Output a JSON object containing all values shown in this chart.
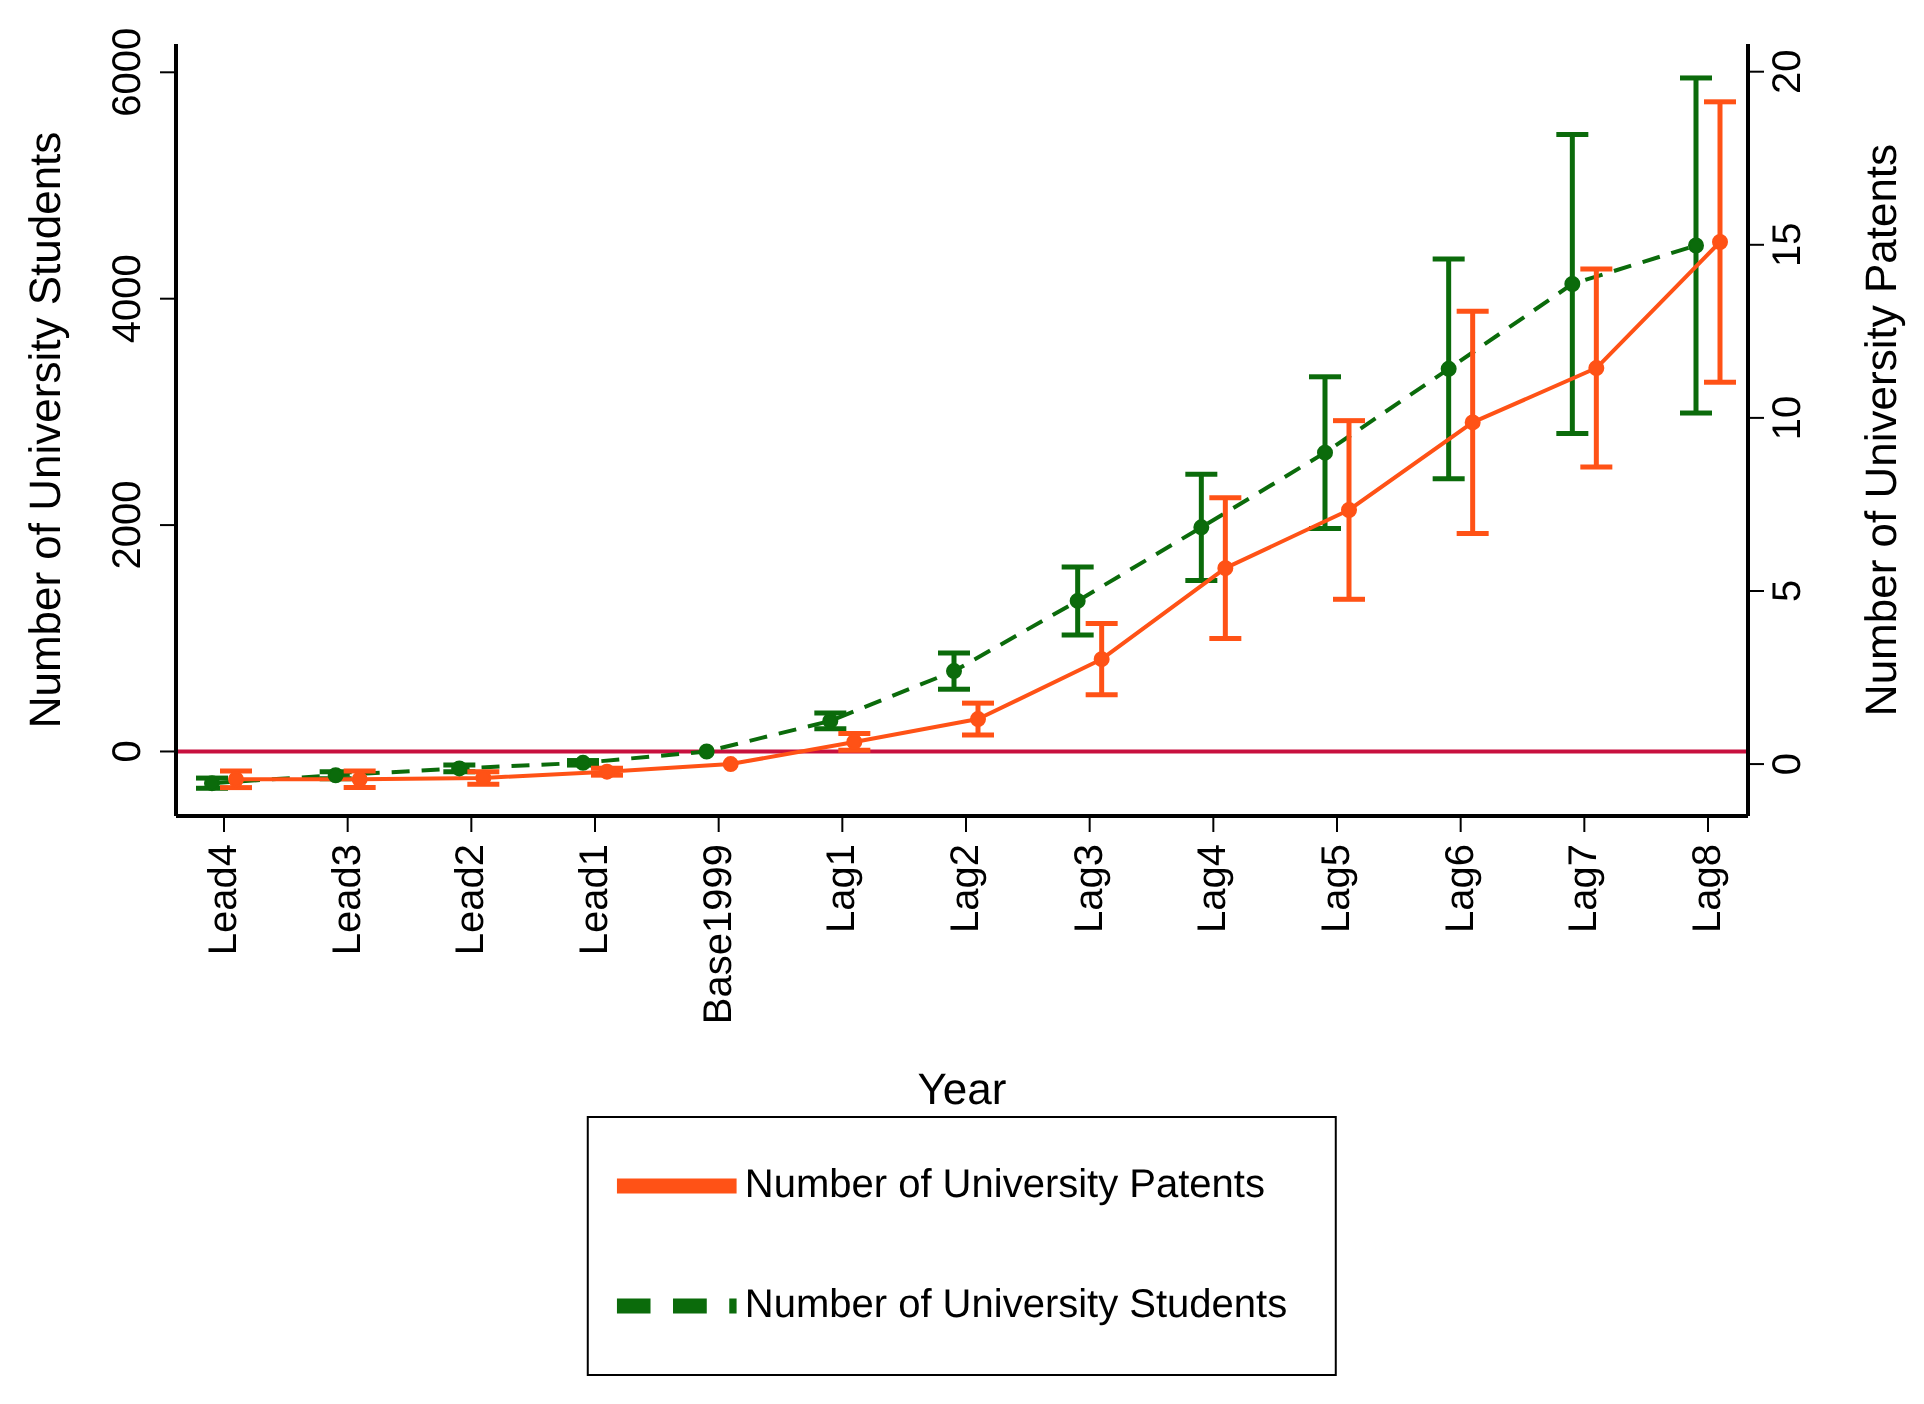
{
  "chart_data": {
    "type": "line",
    "xlabel": "Year",
    "ylabel": "Number of University Students",
    "y2label": "Number of University Patents",
    "categories": [
      "Lead4",
      "Lead3",
      "Lead2",
      "Lead1",
      "Base1999",
      "Lag1",
      "Lag2",
      "Lag3",
      "Lag4",
      "Lag5",
      "Lag6",
      "Lag7",
      "Lag8"
    ],
    "series": [
      {
        "name": "Number of University Students",
        "color": "#0b6b0b",
        "line_style": "dashed",
        "values": [
          -280,
          -210,
          -150,
          -100,
          0,
          270,
          710,
          1330,
          1980,
          2640,
          3380,
          4130,
          4470
        ],
        "errors": [
          45,
          30,
          30,
          20,
          null,
          70,
          160,
          300,
          470,
          670,
          970,
          1320,
          1480
        ]
      },
      {
        "name": "Number of University Patents",
        "color": "#ff5216",
        "line_style": "solid",
        "axis": "y2",
        "values": [
          -0.44,
          -0.44,
          -0.4,
          -0.22,
          0,
          0.64,
          1.3,
          3.03,
          5.66,
          7.34,
          9.87,
          11.44,
          15.08
        ],
        "errors": [
          0.24,
          0.24,
          0.18,
          0.1,
          null,
          0.24,
          0.46,
          1.03,
          2.03,
          2.58,
          3.21,
          2.86,
          4.05
        ]
      }
    ],
    "ylim": [
      -570,
      6250
    ],
    "yticks": [
      0,
      2000,
      4000,
      6000
    ],
    "y2lim": [
      -1.5,
      20.8
    ],
    "y2ticks": [
      0,
      5,
      10,
      15,
      20
    ],
    "ref_lines": [
      {
        "axis": "y",
        "value": 0,
        "color": "#c8103e"
      }
    ],
    "marker": "circle",
    "grid": false,
    "legend": "bottom"
  }
}
